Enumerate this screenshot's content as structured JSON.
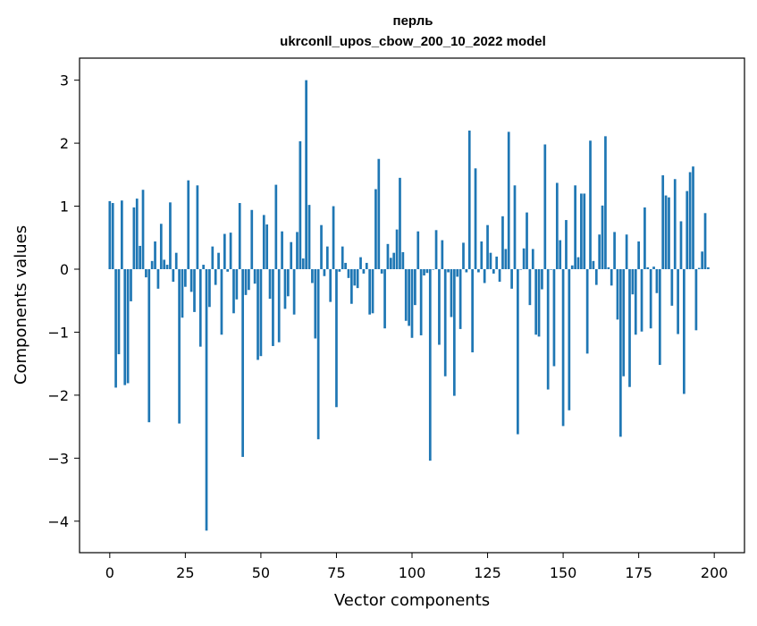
{
  "chart_data": {
    "type": "bar",
    "title_line1": "перль",
    "title_line2": "ukrconll_upos_cbow_200_10_2022 model",
    "xlabel": "Vector components",
    "ylabel": "Components values",
    "xlim": [
      -10,
      210
    ],
    "ylim": [
      -4.5,
      3.35
    ],
    "xticks": [
      0,
      25,
      50,
      75,
      100,
      125,
      150,
      175,
      200
    ],
    "yticks": [
      3,
      2,
      1,
      0,
      -1,
      -2,
      -3,
      -4
    ],
    "ytick_labels": [
      "3",
      "2",
      "1",
      "0",
      "−1",
      "−2",
      "−3",
      "−4"
    ],
    "bar_color": "#1f77b4",
    "grid": false,
    "values": [
      1.08,
      1.05,
      -1.88,
      -1.35,
      1.09,
      -1.84,
      -1.81,
      -0.51,
      0.98,
      1.12,
      0.37,
      1.26,
      -0.13,
      -2.43,
      0.13,
      0.44,
      -0.31,
      0.72,
      0.15,
      0.07,
      1.06,
      -0.2,
      0.26,
      -2.45,
      -0.77,
      -0.28,
      1.41,
      -0.36,
      -0.68,
      1.33,
      -1.23,
      0.07,
      -4.15,
      -0.6,
      0.36,
      -0.25,
      0.26,
      -1.04,
      0.56,
      -0.04,
      0.58,
      -0.7,
      -0.48,
      1.05,
      -2.98,
      -0.41,
      -0.33,
      0.94,
      -0.23,
      -1.44,
      -1.38,
      0.86,
      0.71,
      -0.47,
      -1.22,
      1.34,
      -1.16,
      0.6,
      -0.63,
      -0.43,
      0.43,
      -0.72,
      0.59,
      2.03,
      0.17,
      3.0,
      1.02,
      -0.22,
      -1.1,
      -2.7,
      0.7,
      -0.11,
      0.36,
      -0.52,
      1.0,
      -2.19,
      -0.04,
      0.36,
      0.1,
      -0.14,
      -0.55,
      -0.26,
      -0.3,
      0.19,
      -0.07,
      0.1,
      -0.72,
      -0.7,
      1.27,
      1.75,
      -0.07,
      -0.94,
      0.4,
      0.18,
      0.26,
      0.63,
      1.45,
      0.27,
      -0.82,
      -0.9,
      -1.09,
      -0.57,
      0.6,
      -1.05,
      -0.1,
      -0.06,
      -3.04,
      0.0,
      0.62,
      -1.2,
      0.46,
      -1.7,
      -0.05,
      -0.76,
      -2.01,
      -0.12,
      -0.95,
      0.42,
      -0.05,
      2.2,
      -1.32,
      1.6,
      -0.05,
      0.44,
      -0.22,
      0.7,
      0.26,
      -0.07,
      0.2,
      -0.2,
      0.84,
      0.32,
      2.18,
      -0.31,
      1.33,
      -2.62,
      0.0,
      0.33,
      0.9,
      -0.57,
      0.32,
      -1.04,
      -1.07,
      -0.32,
      1.98,
      -1.91,
      0.0,
      -1.54,
      1.37,
      0.46,
      -2.49,
      0.78,
      -2.24,
      0.06,
      1.33,
      0.19,
      1.2,
      1.2,
      -1.34,
      2.04,
      0.13,
      -0.25,
      0.55,
      1.01,
      2.11,
      0.03,
      -0.26,
      0.59,
      -0.8,
      -2.66,
      -1.7,
      0.55,
      -1.87,
      -0.4,
      -1.04,
      0.44,
      -0.99,
      0.98,
      0.03,
      -0.94,
      0.04,
      -0.38,
      -1.52,
      1.49,
      1.17,
      1.14,
      -0.58,
      1.43,
      -1.03,
      0.76,
      -1.98,
      1.24,
      1.54,
      1.63,
      -0.97,
      0.02,
      0.28,
      0.89,
      0.03
    ]
  }
}
